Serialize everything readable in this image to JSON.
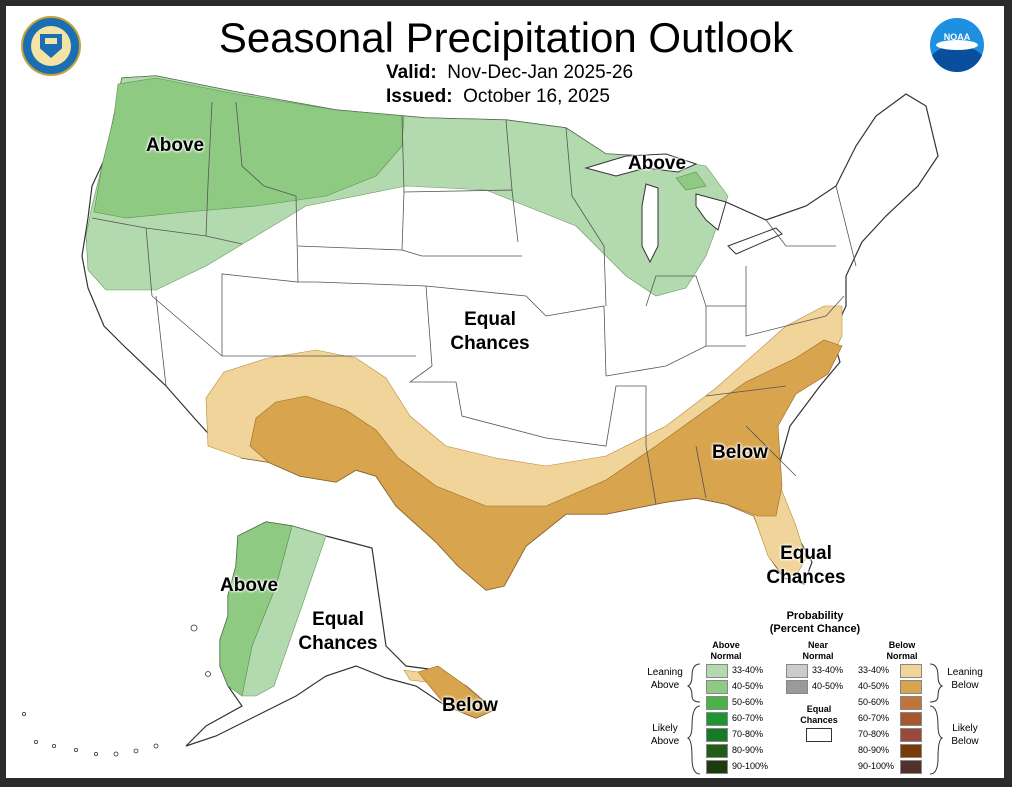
{
  "header": {
    "title": "Seasonal Precipitation Outlook",
    "valid_label": "Valid:",
    "valid_value": "Nov-Dec-Jan 2025-26",
    "issued_label": "Issued:",
    "issued_value": "October 16, 2025"
  },
  "logos": {
    "left": "doc-seal-icon",
    "right": "noaa-logo-icon",
    "noaa_text": "NOAA"
  },
  "colors": {
    "above_33_40": "#b3d9ae",
    "above_40_50": "#8fca82",
    "above_50_60": "#4bb346",
    "above_60_70": "#1c9632",
    "above_70_80": "#177a26",
    "above_80_90": "#235c17",
    "above_90_100": "#1c3c0e",
    "below_33_40": "#f1d49a",
    "below_40_50": "#d9a44e",
    "below_50_60": "#c0733a",
    "below_60_70": "#a5582f",
    "below_70_80": "#9a4a3c",
    "below_80_90": "#7a3b0a",
    "below_90_100": "#53302c",
    "near_33_40": "#cccccc",
    "near_40_50": "#9a9a9a",
    "equal": "#ffffff"
  },
  "map_labels": {
    "northwest": "Above",
    "great_lakes": "Above",
    "central_line1": "Equal",
    "central_line2": "Chances",
    "southeast": "Below",
    "florida_line1": "Equal",
    "florida_line2": "Chances",
    "alaska_west": "Above",
    "alaska_central_line1": "Equal",
    "alaska_central_line2": "Chances",
    "alaska_southeast": "Below"
  },
  "legend": {
    "title_line1": "Probability",
    "title_line2": "(Percent Chance)",
    "above_header": [
      "Above",
      "Normal"
    ],
    "near_header": [
      "Near",
      "Normal"
    ],
    "below_header": [
      "Below",
      "Normal"
    ],
    "leaning_above": [
      "Leaning",
      "Above"
    ],
    "likely_above": [
      "Likely",
      "Above"
    ],
    "leaning_below": [
      "Leaning",
      "Below"
    ],
    "likely_below": [
      "Likely",
      "Below"
    ],
    "equal_chances": [
      "Equal",
      "Chances"
    ],
    "above_ranges": [
      "33-40%",
      "40-50%",
      "50-60%",
      "60-70%",
      "70-80%",
      "80-90%",
      "90-100%"
    ],
    "near_ranges": [
      "33-40%",
      "40-50%"
    ],
    "below_ranges": [
      "33-40%",
      "40-50%",
      "50-60%",
      "60-70%",
      "70-80%",
      "80-90%",
      "90-100%"
    ]
  }
}
